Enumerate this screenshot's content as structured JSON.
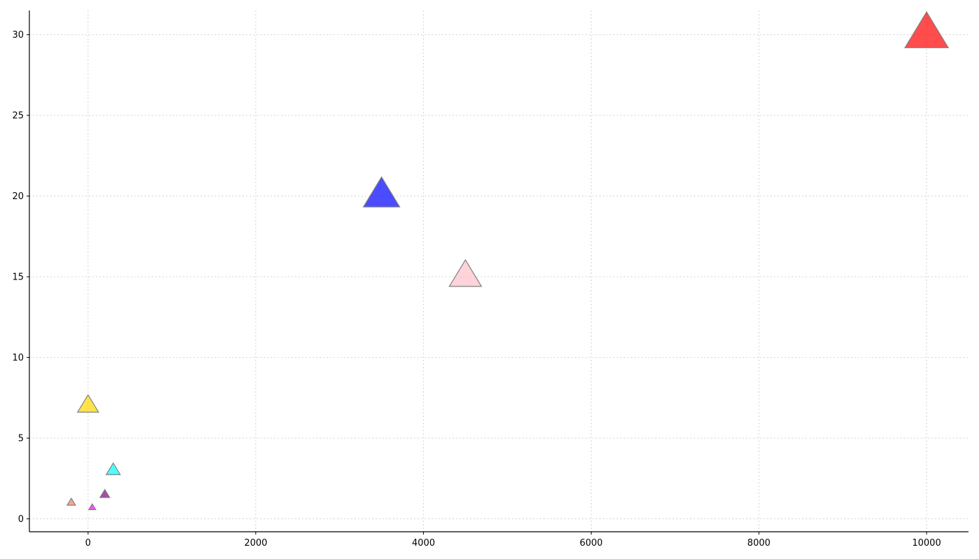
{
  "chart_data": {
    "type": "scatter",
    "title": "",
    "xlabel": "",
    "ylabel": "",
    "xlim": [
      -700,
      10500
    ],
    "ylim": [
      -0.8,
      31.5
    ],
    "x_ticks": [
      0,
      2000,
      4000,
      6000,
      8000,
      10000
    ],
    "y_ticks": [
      0,
      5,
      10,
      15,
      20,
      25,
      30
    ],
    "grid": true,
    "legend": "none",
    "marker": "triangle-up",
    "points": [
      {
        "x": 10000,
        "y": 30,
        "size": 31,
        "color": "#ff0000"
      },
      {
        "x": 3500,
        "y": 20,
        "size": 26,
        "color": "#0000ff"
      },
      {
        "x": 4500,
        "y": 15,
        "size": 23,
        "color": "#ffc0cb"
      },
      {
        "x": 0,
        "y": 7,
        "size": 15,
        "color": "#ffd700"
      },
      {
        "x": 300,
        "y": 3,
        "size": 10,
        "color": "#00ffff"
      },
      {
        "x": 200,
        "y": 1.5,
        "size": 7,
        "color": "#800080"
      },
      {
        "x": -200,
        "y": 1,
        "size": 6,
        "color": "#ff7f50"
      },
      {
        "x": 50,
        "y": 0.7,
        "size": 5,
        "color": "#ff00ff"
      }
    ]
  }
}
